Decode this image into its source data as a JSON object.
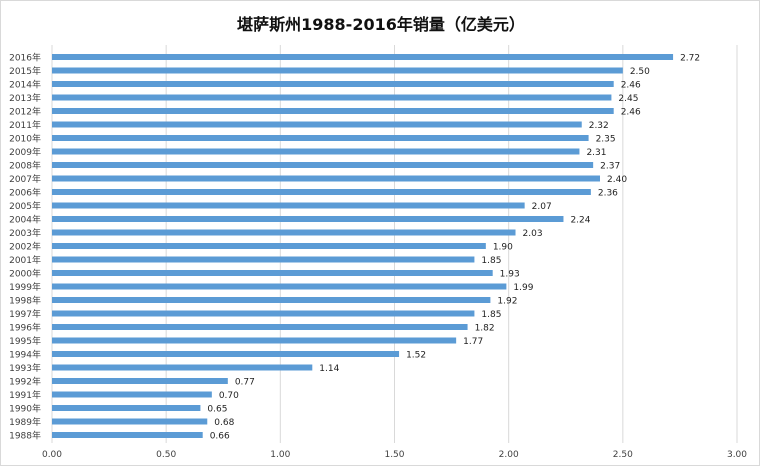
{
  "chart_data": {
    "type": "bar",
    "orientation": "horizontal",
    "title": "堪萨斯州1988-2016年销量（亿美元）",
    "categories": [
      "2016年",
      "2015年",
      "2014年",
      "2013年",
      "2012年",
      "2011年",
      "2010年",
      "2009年",
      "2008年",
      "2007年",
      "2006年",
      "2005年",
      "2004年",
      "2003年",
      "2002年",
      "2001年",
      "2000年",
      "1999年",
      "1998年",
      "1997年",
      "1996年",
      "1995年",
      "1994年",
      "1993年",
      "1992年",
      "1991年",
      "1990年",
      "1989年",
      "1988年"
    ],
    "values": [
      2.72,
      2.5,
      2.46,
      2.45,
      2.46,
      2.32,
      2.35,
      2.31,
      2.37,
      2.4,
      2.36,
      2.07,
      2.24,
      2.03,
      1.9,
      1.85,
      1.93,
      1.99,
      1.92,
      1.85,
      1.82,
      1.77,
      1.52,
      1.14,
      0.77,
      0.7,
      0.65,
      0.68,
      0.66
    ],
    "xlim": [
      0,
      3.0
    ],
    "xticks": [
      "0.00",
      "0.50",
      "1.00",
      "1.50",
      "2.00",
      "2.50",
      "3.00"
    ],
    "grid": true,
    "bar_color": "#5b9bd5",
    "grid_color": "#d9d9d9"
  }
}
